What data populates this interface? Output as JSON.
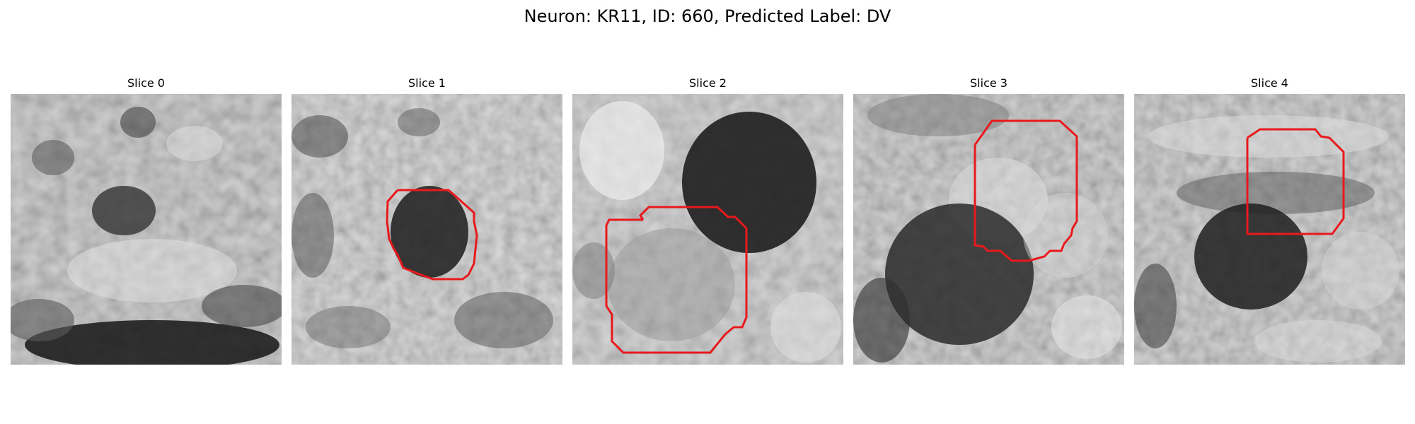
{
  "figure": {
    "title": "Neuron: KR11, ID: 660, Predicted Label: DV"
  },
  "panels": [
    {
      "title": "Slice 0",
      "has_outline": false
    },
    {
      "title": "Slice 1",
      "has_outline": true
    },
    {
      "title": "Slice 2",
      "has_outline": true
    },
    {
      "title": "Slice 3",
      "has_outline": true
    },
    {
      "title": "Slice 4",
      "has_outline": true
    }
  ],
  "colors": {
    "outline": "#e8191c",
    "background": "#ffffff"
  }
}
